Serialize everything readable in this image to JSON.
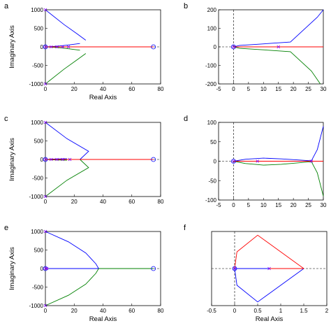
{
  "chart_data": [
    {
      "label": "a",
      "type": "line",
      "xlabel": "Real Axis",
      "ylabel": "Imaginary Axis",
      "xlim": [
        0,
        80
      ],
      "ylim": [
        -1000,
        1000
      ],
      "xticks": [
        0,
        20,
        40,
        60,
        80
      ],
      "xtick_labels": [
        "0",
        "20",
        "40",
        "60",
        "80"
      ],
      "yticks": [
        -1000,
        -500,
        0,
        500,
        1000
      ],
      "ytick_labels": [
        "-1000",
        "-500",
        "0",
        "500",
        "1000"
      ],
      "series": [
        {
          "color": "#0000ff",
          "x": [
            0,
            13,
            22,
            28
          ],
          "y": [
            1000,
            600,
            350,
            180
          ]
        },
        {
          "color": "#0000ff",
          "x": [
            0,
            5,
            10,
            16,
            24
          ],
          "y": [
            0,
            10,
            25,
            50,
            90
          ]
        },
        {
          "color": "#008000",
          "x": [
            0,
            13,
            22,
            28
          ],
          "y": [
            -1000,
            -600,
            -350,
            -180
          ]
        },
        {
          "color": "#008000",
          "x": [
            0,
            5,
            10,
            16,
            24
          ],
          "y": [
            0,
            -10,
            -25,
            -50,
            -90
          ]
        },
        {
          "color": "#ff0000",
          "x": [
            0,
            75
          ],
          "y": [
            0,
            0
          ]
        }
      ],
      "zeros": [
        [
          0,
          0
        ],
        [
          75,
          0
        ]
      ],
      "poles": [
        [
          0,
          1000
        ],
        [
          0,
          -1000
        ],
        [
          0,
          0
        ],
        [
          4,
          0
        ],
        [
          8,
          0
        ],
        [
          12,
          0
        ],
        [
          16,
          0
        ]
      ]
    },
    {
      "label": "b",
      "type": "line",
      "xlabel": "",
      "ylabel": "",
      "xlim": [
        -5,
        30
      ],
      "ylim": [
        -200,
        200
      ],
      "xticks": [
        -5,
        0,
        5,
        10,
        15,
        20,
        25,
        30
      ],
      "xtick_labels": [
        "-5",
        "0",
        "5",
        "10",
        "15",
        "20",
        "25",
        "30"
      ],
      "yticks": [
        -200,
        -100,
        0,
        100,
        200
      ],
      "ytick_labels": [
        "-200",
        "-100",
        "0",
        "100",
        "200"
      ],
      "series": [
        {
          "color": "#0000ff",
          "x": [
            0,
            2,
            8,
            19,
            28,
            30
          ],
          "y": [
            0,
            8,
            14,
            26,
            160,
            200
          ]
        },
        {
          "color": "#008000",
          "x": [
            0,
            2,
            8,
            19,
            26,
            29
          ],
          "y": [
            0,
            -8,
            -14,
            -26,
            -130,
            -200
          ]
        },
        {
          "color": "#ff0000",
          "x": [
            0,
            30
          ],
          "y": [
            0,
            0
          ]
        }
      ],
      "zeros": [
        [
          0,
          0
        ]
      ],
      "poles": [
        [
          0,
          0
        ],
        [
          15,
          0
        ]
      ]
    },
    {
      "label": "c",
      "type": "line",
      "xlabel": "",
      "ylabel": "Imaginary Axis",
      "xlim": [
        0,
        80
      ],
      "ylim": [
        -1000,
        1000
      ],
      "xticks": [
        0,
        20,
        40,
        60,
        80
      ],
      "xtick_labels": [
        "0",
        "20",
        "40",
        "60",
        "80"
      ],
      "yticks": [
        -1000,
        -500,
        0,
        500,
        1000
      ],
      "ytick_labels": [
        "-1000",
        "-500",
        "0",
        "500",
        "1000"
      ],
      "series": [
        {
          "color": "#0000ff",
          "x": [
            0,
            15,
            30,
            24
          ],
          "y": [
            1000,
            560,
            220,
            0
          ]
        },
        {
          "color": "#0000ff",
          "x": [
            0,
            5,
            10,
            15
          ],
          "y": [
            0,
            10,
            15,
            20
          ]
        },
        {
          "color": "#008000",
          "x": [
            0,
            15,
            30,
            24
          ],
          "y": [
            -1000,
            -560,
            -220,
            0
          ]
        },
        {
          "color": "#008000",
          "x": [
            0,
            5,
            10,
            15
          ],
          "y": [
            0,
            -10,
            -15,
            -20
          ]
        },
        {
          "color": "#ff0000",
          "x": [
            0,
            75
          ],
          "y": [
            0,
            0
          ]
        }
      ],
      "zeros": [
        [
          0,
          0
        ],
        [
          75,
          0
        ]
      ],
      "poles": [
        [
          0,
          1000
        ],
        [
          0,
          -1000
        ],
        [
          0,
          0
        ],
        [
          4,
          0
        ],
        [
          8,
          0
        ],
        [
          12,
          0
        ],
        [
          17,
          0
        ]
      ]
    },
    {
      "label": "d",
      "type": "line",
      "xlabel": "",
      "ylabel": "",
      "xlim": [
        -5,
        30
      ],
      "ylim": [
        -100,
        100
      ],
      "xticks": [
        -5,
        0,
        5,
        10,
        15,
        20,
        25,
        30
      ],
      "xtick_labels": [
        "-5",
        "0",
        "5",
        "10",
        "15",
        "20",
        "25",
        "30"
      ],
      "yticks": [
        -100,
        -50,
        0,
        50,
        100
      ],
      "ytick_labels": [
        "-100",
        "-50",
        "0",
        "50",
        "100"
      ],
      "series": [
        {
          "color": "#0000ff",
          "x": [
            0,
            4,
            10,
            16,
            22,
            26,
            28,
            30
          ],
          "y": [
            0,
            5,
            8,
            6,
            3,
            1,
            30,
            90
          ]
        },
        {
          "color": "#008000",
          "x": [
            0,
            4,
            10,
            16,
            22,
            26,
            28,
            30
          ],
          "y": [
            0,
            -6,
            -10,
            -8,
            -4,
            -1,
            -30,
            -90
          ]
        },
        {
          "color": "#ff0000",
          "x": [
            0,
            30
          ],
          "y": [
            0,
            0
          ]
        }
      ],
      "zeros": [
        [
          0,
          0
        ]
      ],
      "poles": [
        [
          0,
          0
        ],
        [
          8,
          0
        ],
        [
          26,
          0
        ]
      ]
    },
    {
      "label": "e",
      "type": "line",
      "xlabel": "Real Axis",
      "ylabel": "Imaginary Axis",
      "xlim": [
        0,
        80
      ],
      "ylim": [
        -1000,
        1000
      ],
      "xticks": [
        0,
        20,
        40,
        60,
        80
      ],
      "xtick_labels": [
        "0",
        "20",
        "40",
        "60",
        "80"
      ],
      "yticks": [
        -1000,
        -500,
        0,
        500,
        1000
      ],
      "ytick_labels": [
        "-1000",
        "-500",
        "0",
        "500",
        "1000"
      ],
      "series": [
        {
          "color": "#0000ff",
          "x": [
            0,
            16,
            28,
            35,
            37
          ],
          "y": [
            1000,
            720,
            420,
            130,
            0
          ]
        },
        {
          "color": "#008000",
          "x": [
            0,
            16,
            28,
            35,
            37
          ],
          "y": [
            -1000,
            -720,
            -420,
            -130,
            0
          ]
        },
        {
          "color": "#0000ff",
          "x": [
            0,
            37
          ],
          "y": [
            0,
            0
          ]
        },
        {
          "color": "#008000",
          "x": [
            37,
            75
          ],
          "y": [
            0,
            0
          ]
        },
        {
          "color": "#ff0000",
          "x": [
            0,
            2
          ],
          "y": [
            0,
            0
          ]
        }
      ],
      "zeros": [
        [
          0,
          0
        ],
        [
          75,
          0
        ]
      ],
      "poles": [
        [
          0,
          1000
        ],
        [
          0,
          -1000
        ],
        [
          0,
          0
        ],
        [
          1,
          0
        ]
      ]
    },
    {
      "label": "f",
      "type": "line",
      "xlabel": "Real Axis",
      "ylabel": "",
      "xlim": [
        -0.5,
        2
      ],
      "ylim": [
        -1,
        1
      ],
      "xticks": [
        -0.5,
        0,
        0.5,
        1,
        1.5,
        2
      ],
      "xtick_labels": [
        "-0.5",
        "0",
        "0.5",
        "1",
        "1.5",
        "2"
      ],
      "yticks": [],
      "series": [
        {
          "color": "#ff0000",
          "x": [
            0,
            0.05,
            0.5,
            1.5
          ],
          "y": [
            0,
            0.45,
            0.9,
            0
          ]
        },
        {
          "color": "#0000ff",
          "x": [
            0,
            0.05,
            0.5,
            1.5
          ],
          "y": [
            0,
            -0.45,
            -0.9,
            0
          ]
        },
        {
          "color": "#0000ff",
          "x": [
            0,
            0.75
          ],
          "y": [
            0,
            0
          ]
        },
        {
          "color": "#ff0000",
          "x": [
            0.75,
            1.5
          ],
          "y": [
            0,
            0
          ]
        }
      ],
      "zeros": [
        [
          0,
          0
        ]
      ],
      "poles": [
        [
          0,
          0
        ],
        [
          0.75,
          0
        ]
      ]
    }
  ]
}
